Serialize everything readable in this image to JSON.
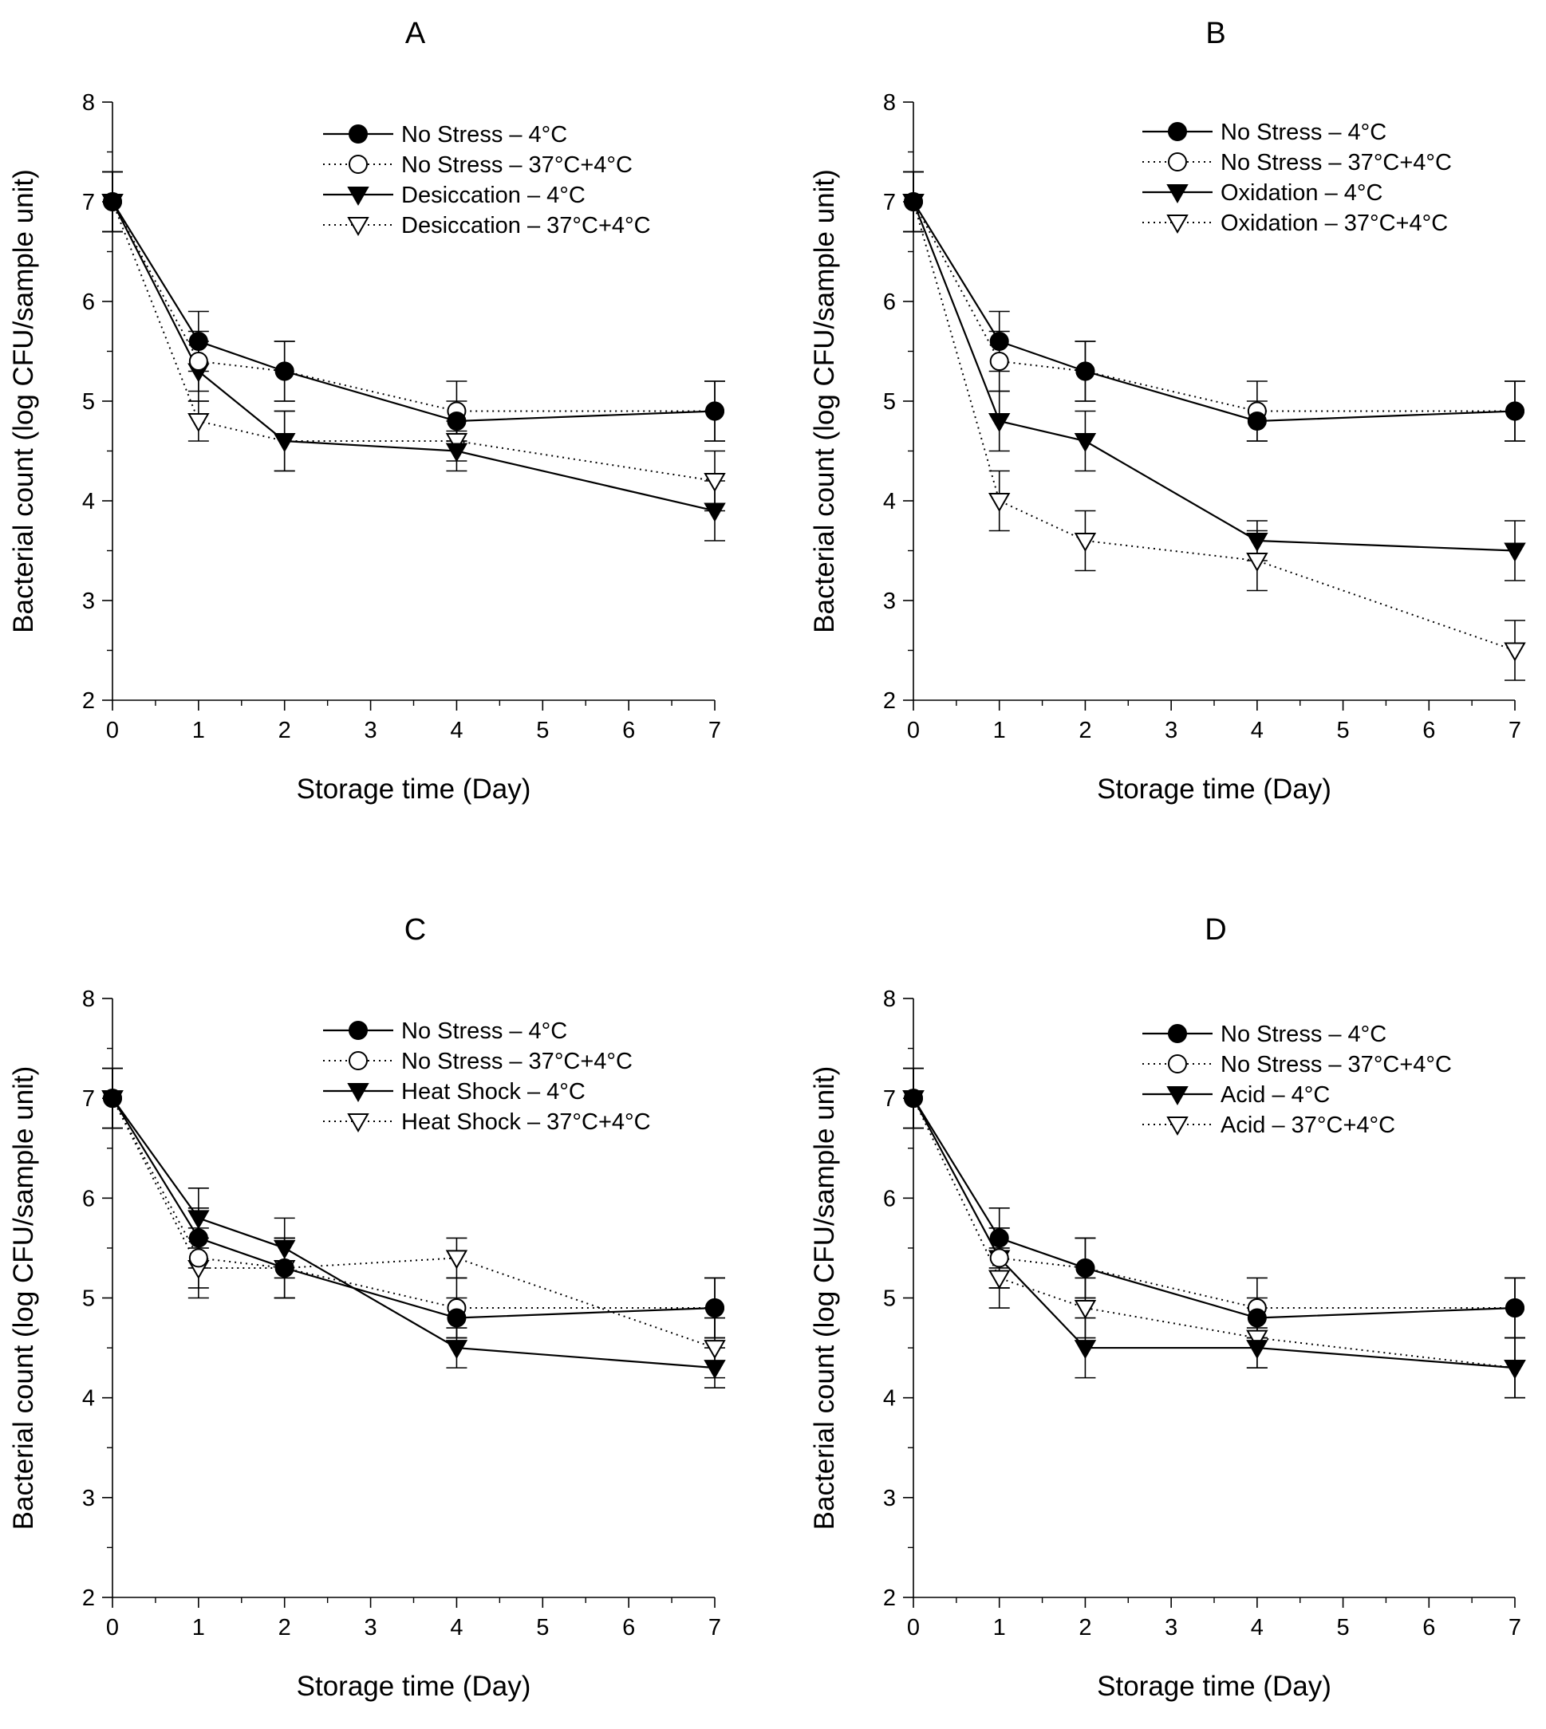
{
  "chart_data": [
    {
      "type": "line",
      "title": "A",
      "xlabel": "Storage time (Day)",
      "ylabel": "Bacterial count (log CFU/sample unit)",
      "xlim": [
        0,
        7
      ],
      "ylim": [
        2,
        8
      ],
      "xticks": [
        "0",
        "1",
        "2",
        "3",
        "4",
        "5",
        "6",
        "7"
      ],
      "yticks": [
        "2",
        "3",
        "4",
        "5",
        "6",
        "7",
        "8"
      ],
      "legend_position": "top-right",
      "x": [
        0,
        1,
        2,
        4,
        7
      ],
      "series": [
        {
          "name": "No Stress – 4°C",
          "marker": "filled-circle",
          "line": "solid",
          "values": [
            7.0,
            5.6,
            5.3,
            4.8,
            4.9
          ],
          "errors": [
            0.3,
            0.3,
            0.3,
            0.2,
            0.3
          ]
        },
        {
          "name": "No Stress – 37°C+4°C",
          "marker": "open-circle",
          "line": "dotted",
          "values": [
            7.0,
            5.4,
            5.3,
            4.9,
            4.9
          ],
          "errors": [
            0.3,
            0.3,
            0.3,
            0.3,
            0.3
          ]
        },
        {
          "name": "Desiccation – 4°C",
          "marker": "filled-triangle",
          "line": "solid",
          "values": [
            7.0,
            5.3,
            4.6,
            4.5,
            3.9
          ],
          "errors": [
            0.3,
            0.3,
            0.3,
            0.2,
            0.3
          ]
        },
        {
          "name": "Desiccation – 37°C+4°C",
          "marker": "open-triangle",
          "line": "dotted",
          "values": [
            7.0,
            4.8,
            4.6,
            4.6,
            4.2
          ],
          "errors": [
            0.3,
            0.2,
            0.3,
            0.2,
            0.3
          ]
        }
      ]
    },
    {
      "type": "line",
      "title": "B",
      "xlabel": "Storage time (Day)",
      "ylabel": "Bacterial count (log CFU/sample unit)",
      "xlim": [
        0,
        7
      ],
      "ylim": [
        2,
        8
      ],
      "xticks": [
        "0",
        "1",
        "2",
        "3",
        "4",
        "5",
        "6",
        "7"
      ],
      "yticks": [
        "2",
        "3",
        "4",
        "5",
        "6",
        "7",
        "8"
      ],
      "legend_position": "top-right",
      "x": [
        0,
        1,
        2,
        4,
        7
      ],
      "series": [
        {
          "name": "No Stress – 4°C",
          "marker": "filled-circle",
          "line": "solid",
          "values": [
            7.0,
            5.6,
            5.3,
            4.8,
            4.9
          ],
          "errors": [
            0.3,
            0.3,
            0.3,
            0.2,
            0.3
          ]
        },
        {
          "name": "No Stress – 37°C+4°C",
          "marker": "open-circle",
          "line": "dotted",
          "values": [
            7.0,
            5.4,
            5.3,
            4.9,
            4.9
          ],
          "errors": [
            0.3,
            0.3,
            0.3,
            0.3,
            0.3
          ]
        },
        {
          "name": "Oxidation – 4°C",
          "marker": "filled-triangle",
          "line": "solid",
          "values": [
            7.0,
            4.8,
            4.6,
            3.6,
            3.5
          ],
          "errors": [
            0.3,
            0.3,
            0.3,
            0.2,
            0.3
          ]
        },
        {
          "name": "Oxidation – 37°C+4°C",
          "marker": "open-triangle",
          "line": "dotted",
          "values": [
            7.0,
            4.0,
            3.6,
            3.4,
            2.5
          ],
          "errors": [
            0.3,
            0.3,
            0.3,
            0.3,
            0.3
          ]
        }
      ]
    },
    {
      "type": "line",
      "title": "C",
      "xlabel": "Storage time (Day)",
      "ylabel": "Bacterial count (log CFU/sample unit)",
      "xlim": [
        0,
        7
      ],
      "ylim": [
        2,
        8
      ],
      "xticks": [
        "0",
        "1",
        "2",
        "3",
        "4",
        "5",
        "6",
        "7"
      ],
      "yticks": [
        "2",
        "3",
        "4",
        "5",
        "6",
        "7",
        "8"
      ],
      "legend_position": "top-right",
      "x": [
        0,
        1,
        2,
        4,
        7
      ],
      "series": [
        {
          "name": "No Stress – 4°C",
          "marker": "filled-circle",
          "line": "solid",
          "values": [
            7.0,
            5.6,
            5.3,
            4.8,
            4.9
          ],
          "errors": [
            0.3,
            0.3,
            0.3,
            0.2,
            0.3
          ]
        },
        {
          "name": "No Stress – 37°C+4°C",
          "marker": "open-circle",
          "line": "dotted",
          "values": [
            7.0,
            5.4,
            5.3,
            4.9,
            4.9
          ],
          "errors": [
            0.3,
            0.3,
            0.3,
            0.3,
            0.3
          ]
        },
        {
          "name": "Heat Shock – 4°C",
          "marker": "filled-triangle",
          "line": "solid",
          "values": [
            7.0,
            5.8,
            5.5,
            4.5,
            4.3
          ],
          "errors": [
            0.3,
            0.3,
            0.3,
            0.2,
            0.2
          ]
        },
        {
          "name": "Heat Shock – 37°C+4°C",
          "marker": "open-triangle",
          "line": "dotted",
          "values": [
            7.0,
            5.3,
            5.3,
            5.4,
            4.5
          ],
          "errors": [
            0.3,
            0.3,
            0.3,
            0.2,
            0.3
          ]
        }
      ]
    },
    {
      "type": "line",
      "title": "D",
      "xlabel": "Storage time (Day)",
      "ylabel": "Bacterial count (log CFU/sample unit)",
      "xlim": [
        0,
        7
      ],
      "ylim": [
        2,
        8
      ],
      "xticks": [
        "0",
        "1",
        "2",
        "3",
        "4",
        "5",
        "6",
        "7"
      ],
      "yticks": [
        "2",
        "3",
        "4",
        "5",
        "6",
        "7",
        "8"
      ],
      "legend_position": "top-right",
      "x": [
        0,
        1,
        2,
        4,
        7
      ],
      "series": [
        {
          "name": "No Stress – 4°C",
          "marker": "filled-circle",
          "line": "solid",
          "values": [
            7.0,
            5.6,
            5.3,
            4.8,
            4.9
          ],
          "errors": [
            0.3,
            0.3,
            0.3,
            0.2,
            0.3
          ]
        },
        {
          "name": "No Stress – 37°C+4°C",
          "marker": "open-circle",
          "line": "dotted",
          "values": [
            7.0,
            5.4,
            5.3,
            4.9,
            4.9
          ],
          "errors": [
            0.3,
            0.3,
            0.3,
            0.3,
            0.3
          ]
        },
        {
          "name": "Acid – 4°C",
          "marker": "filled-triangle",
          "line": "solid",
          "values": [
            7.0,
            5.4,
            4.5,
            4.5,
            4.3
          ],
          "errors": [
            0.3,
            0.3,
            0.3,
            0.2,
            0.3
          ]
        },
        {
          "name": "Acid – 37°C+4°C",
          "marker": "open-triangle",
          "line": "dotted",
          "values": [
            7.0,
            5.2,
            4.9,
            4.6,
            4.3
          ],
          "errors": [
            0.3,
            0.3,
            0.3,
            0.3,
            0.3
          ]
        }
      ]
    }
  ]
}
